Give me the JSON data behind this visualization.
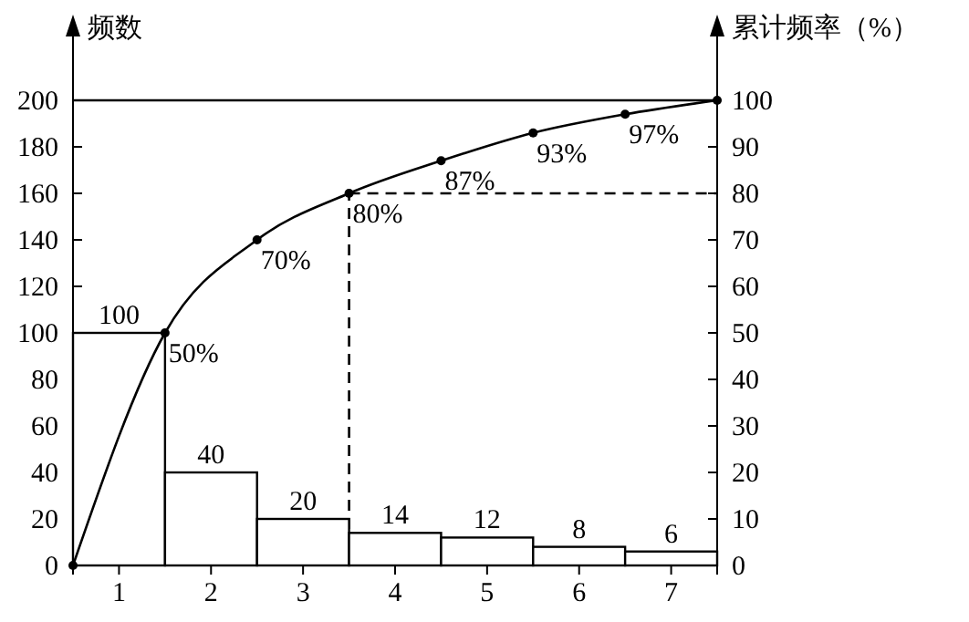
{
  "chart_data": {
    "type": "bar",
    "ylabel": "频数",
    "y2label": "累计频率（%）",
    "x": [
      1,
      2,
      3,
      4,
      5,
      6,
      7
    ],
    "xlim": [
      0.5,
      7.5
    ],
    "xticks": [
      1,
      2,
      3,
      4,
      5,
      6,
      7
    ],
    "ylim": [
      0,
      200
    ],
    "yticks": [
      0,
      20,
      40,
      60,
      80,
      100,
      120,
      140,
      160,
      180,
      200
    ],
    "y2lim": [
      0,
      100
    ],
    "y2ticks": [
      0,
      10,
      20,
      30,
      40,
      50,
      60,
      70,
      80,
      90,
      100
    ],
    "series": [
      {
        "color": "#ffffff",
        "values": [
          100,
          40,
          20,
          14,
          12,
          8,
          6
        ]
      },
      {
        "type": "line",
        "axis": "y2",
        "color": "#000000",
        "marker": "circle",
        "x": [
          0.5,
          1.5,
          2.5,
          3.5,
          4.5,
          5.5,
          6.5,
          7.5
        ],
        "values": [
          0,
          50,
          70,
          80,
          87,
          93,
          97,
          100
        ],
        "value_labels": [
          null,
          "50%",
          "70%",
          "80%",
          "87%",
          "93%",
          "97%",
          null
        ]
      }
    ],
    "data_labels": true,
    "grid": false,
    "ref_lines": [
      {
        "axis": "y",
        "value": 200,
        "line_style": "solid"
      },
      {
        "axis": "y2",
        "value": 80,
        "line_style": "dashed"
      },
      {
        "axis": "x",
        "value": 3.5,
        "line_style": "dashed"
      }
    ]
  }
}
